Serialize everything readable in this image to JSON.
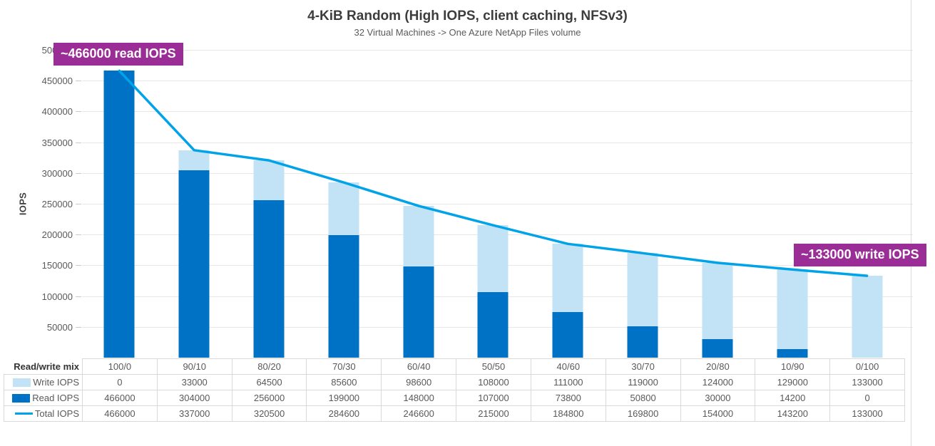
{
  "chart_data": {
    "type": "bar",
    "combo": "stacked-bars-with-line-overlay",
    "title": "4-KiB Random (High IOPS, client caching, NFSv3)",
    "subtitle": "32 Virtual Machines -> One Azure NetApp Files volume",
    "ylabel": "IOPS",
    "xlabel": "",
    "row_header": "Read/write mix",
    "ylim": [
      0,
      500000
    ],
    "y_ticks": [
      50000,
      100000,
      150000,
      200000,
      250000,
      300000,
      350000,
      400000,
      450000,
      500000
    ],
    "grid": "horizontal",
    "legend_position": "table-row-labels-left",
    "categories": [
      "100/0",
      "90/10",
      "80/20",
      "70/30",
      "60/40",
      "50/50",
      "40/60",
      "30/70",
      "20/80",
      "10/90",
      "0/100"
    ],
    "series": [
      {
        "name": "Write IOPS",
        "type": "bar",
        "stack": "top",
        "color": "#C2E3F6",
        "values": [
          0,
          33000,
          64500,
          85600,
          98600,
          108000,
          111000,
          119000,
          124000,
          129000,
          133000
        ]
      },
      {
        "name": "Read IOPS",
        "type": "bar",
        "stack": "bottom",
        "color": "#0072C6",
        "values": [
          466000,
          304000,
          256000,
          199000,
          148000,
          107000,
          73800,
          50800,
          30000,
          14200,
          0
        ]
      },
      {
        "name": "Total IOPS",
        "type": "line",
        "color": "#00A3E8",
        "values": [
          466000,
          337000,
          320500,
          284600,
          246600,
          215000,
          184800,
          169800,
          154000,
          143200,
          133000
        ]
      }
    ],
    "annotations": [
      {
        "text": "~466000 read IOPS",
        "color": "#9A2D96",
        "position": "top-left"
      },
      {
        "text": "~133000 write IOPS",
        "color": "#9A2D96",
        "position": "right"
      }
    ],
    "colors": {
      "gridline": "#E7E7E7",
      "axis_text": "#595959",
      "title_text": "#3D3D3D",
      "table_border": "#D9D9D9",
      "callout_bg": "#9A2D96"
    }
  }
}
